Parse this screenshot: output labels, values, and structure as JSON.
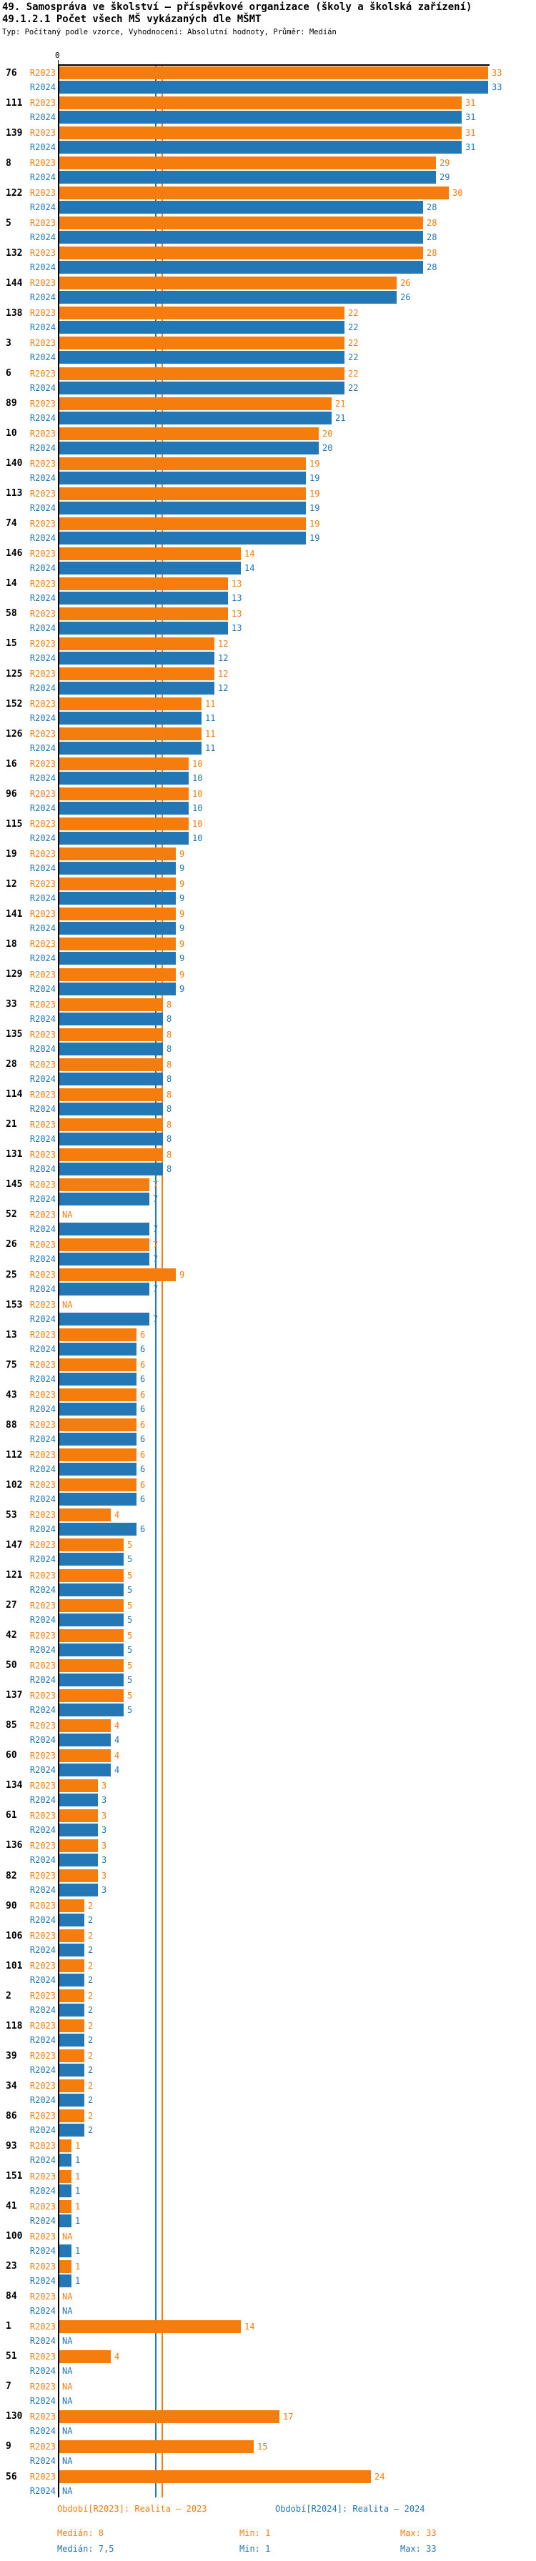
{
  "page": {
    "title": "49. Samospráva ve školství – příspěvkové organizace (školy a školská zařízení)",
    "subtitle": "49.1.2.1 Počet všech MŠ vykázaných dle MŠMT",
    "meta": "Typ: Počítaný podle vzorce, Vyhodnocení: Absolutní hodnoty, Průměr: Medián"
  },
  "chart_data": {
    "type": "bar",
    "orientation": "horizontal",
    "na_text": "NA",
    "x_axis": {
      "tick_labels": [
        "0"
      ],
      "xlim": [
        0,
        36
      ],
      "grid": false
    },
    "series_row_labels": [
      "R2023",
      "R2024"
    ],
    "legend": [
      {
        "id": "R2023",
        "label": "Období[R2023]: Realita – 2023",
        "color": "#f57d0e"
      },
      {
        "id": "R2024",
        "label": "Období[R2024]: Realita – 2024",
        "color": "#2277b4"
      }
    ],
    "median_lines": [
      {
        "series": "R2023",
        "value": 8
      },
      {
        "series": "R2024",
        "value": 7.5
      }
    ],
    "stats": [
      {
        "series": "R2023",
        "median_label": "Medián: 8",
        "min_label": "Min: 1",
        "max_label": "Max: 33"
      },
      {
        "series": "R2024",
        "median_label": "Medián: 7,5",
        "min_label": "Min: 1",
        "max_label": "Max: 33"
      }
    ],
    "groups": [
      {
        "label": "76",
        "r2023": 33,
        "r2024": 33
      },
      {
        "label": "111",
        "r2023": 31,
        "r2024": 31
      },
      {
        "label": "139",
        "r2023": 31,
        "r2024": 31
      },
      {
        "label": "8",
        "r2023": 29,
        "r2024": 29
      },
      {
        "label": "122",
        "r2023": 30,
        "r2024": 28
      },
      {
        "label": "5",
        "r2023": 28,
        "r2024": 28
      },
      {
        "label": "132",
        "r2023": 28,
        "r2024": 28
      },
      {
        "label": "144",
        "r2023": 26,
        "r2024": 26
      },
      {
        "label": "138",
        "r2023": 22,
        "r2024": 22
      },
      {
        "label": "3",
        "r2023": 22,
        "r2024": 22
      },
      {
        "label": "6",
        "r2023": 22,
        "r2024": 22
      },
      {
        "label": "89",
        "r2023": 21,
        "r2024": 21
      },
      {
        "label": "10",
        "r2023": 20,
        "r2024": 20
      },
      {
        "label": "140",
        "r2023": 19,
        "r2024": 19
      },
      {
        "label": "113",
        "r2023": 19,
        "r2024": 19
      },
      {
        "label": "74",
        "r2023": 19,
        "r2024": 19
      },
      {
        "label": "146",
        "r2023": 14,
        "r2024": 14
      },
      {
        "label": "14",
        "r2023": 13,
        "r2024": 13
      },
      {
        "label": "58",
        "r2023": 13,
        "r2024": 13
      },
      {
        "label": "15",
        "r2023": 12,
        "r2024": 12
      },
      {
        "label": "125",
        "r2023": 12,
        "r2024": 12
      },
      {
        "label": "152",
        "r2023": 11,
        "r2024": 11
      },
      {
        "label": "126",
        "r2023": 11,
        "r2024": 11
      },
      {
        "label": "16",
        "r2023": 10,
        "r2024": 10
      },
      {
        "label": "96",
        "r2023": 10,
        "r2024": 10
      },
      {
        "label": "115",
        "r2023": 10,
        "r2024": 10
      },
      {
        "label": "19",
        "r2023": 9,
        "r2024": 9
      },
      {
        "label": "12",
        "r2023": 9,
        "r2024": 9
      },
      {
        "label": "141",
        "r2023": 9,
        "r2024": 9
      },
      {
        "label": "18",
        "r2023": 9,
        "r2024": 9
      },
      {
        "label": "129",
        "r2023": 9,
        "r2024": 9
      },
      {
        "label": "33",
        "r2023": 8,
        "r2024": 8
      },
      {
        "label": "135",
        "r2023": 8,
        "r2024": 8
      },
      {
        "label": "28",
        "r2023": 8,
        "r2024": 8
      },
      {
        "label": "114",
        "r2023": 8,
        "r2024": 8
      },
      {
        "label": "21",
        "r2023": 8,
        "r2024": 8
      },
      {
        "label": "131",
        "r2023": 8,
        "r2024": 8
      },
      {
        "label": "145",
        "r2023": 7,
        "r2024": 7
      },
      {
        "label": "52",
        "r2023": null,
        "r2024": 7
      },
      {
        "label": "26",
        "r2023": 7,
        "r2024": 7
      },
      {
        "label": "25",
        "r2023": 9,
        "r2024": 7
      },
      {
        "label": "153",
        "r2023": null,
        "r2024": 7
      },
      {
        "label": "13",
        "r2023": 6,
        "r2024": 6
      },
      {
        "label": "75",
        "r2023": 6,
        "r2024": 6
      },
      {
        "label": "43",
        "r2023": 6,
        "r2024": 6
      },
      {
        "label": "88",
        "r2023": 6,
        "r2024": 6
      },
      {
        "label": "112",
        "r2023": 6,
        "r2024": 6
      },
      {
        "label": "102",
        "r2023": 6,
        "r2024": 6
      },
      {
        "label": "53",
        "r2023": 4,
        "r2024": 6
      },
      {
        "label": "147",
        "r2023": 5,
        "r2024": 5
      },
      {
        "label": "121",
        "r2023": 5,
        "r2024": 5
      },
      {
        "label": "27",
        "r2023": 5,
        "r2024": 5
      },
      {
        "label": "42",
        "r2023": 5,
        "r2024": 5
      },
      {
        "label": "50",
        "r2023": 5,
        "r2024": 5
      },
      {
        "label": "137",
        "r2023": 5,
        "r2024": 5
      },
      {
        "label": "85",
        "r2023": 4,
        "r2024": 4
      },
      {
        "label": "60",
        "r2023": 4,
        "r2024": 4
      },
      {
        "label": "134",
        "r2023": 3,
        "r2024": 3
      },
      {
        "label": "61",
        "r2023": 3,
        "r2024": 3
      },
      {
        "label": "136",
        "r2023": 3,
        "r2024": 3
      },
      {
        "label": "82",
        "r2023": 3,
        "r2024": 3
      },
      {
        "label": "90",
        "r2023": 2,
        "r2024": 2
      },
      {
        "label": "106",
        "r2023": 2,
        "r2024": 2
      },
      {
        "label": "101",
        "r2023": 2,
        "r2024": 2
      },
      {
        "label": "2",
        "r2023": 2,
        "r2024": 2
      },
      {
        "label": "118",
        "r2023": 2,
        "r2024": 2
      },
      {
        "label": "39",
        "r2023": 2,
        "r2024": 2
      },
      {
        "label": "34",
        "r2023": 2,
        "r2024": 2
      },
      {
        "label": "86",
        "r2023": 2,
        "r2024": 2
      },
      {
        "label": "93",
        "r2023": 1,
        "r2024": 1
      },
      {
        "label": "151",
        "r2023": 1,
        "r2024": 1
      },
      {
        "label": "41",
        "r2023": 1,
        "r2024": 1
      },
      {
        "label": "100",
        "r2023": null,
        "r2024": 1
      },
      {
        "label": "23",
        "r2023": 1,
        "r2024": 1
      },
      {
        "label": "84",
        "r2023": null,
        "r2024": null
      },
      {
        "label": "1",
        "r2023": 14,
        "r2024": null
      },
      {
        "label": "51",
        "r2023": 4,
        "r2024": null
      },
      {
        "label": "7",
        "r2023": null,
        "r2024": null
      },
      {
        "label": "130",
        "r2023": 17,
        "r2024": null
      },
      {
        "label": "9",
        "r2023": 15,
        "r2024": null
      },
      {
        "label": "56",
        "r2023": 24,
        "r2024": null
      }
    ]
  }
}
